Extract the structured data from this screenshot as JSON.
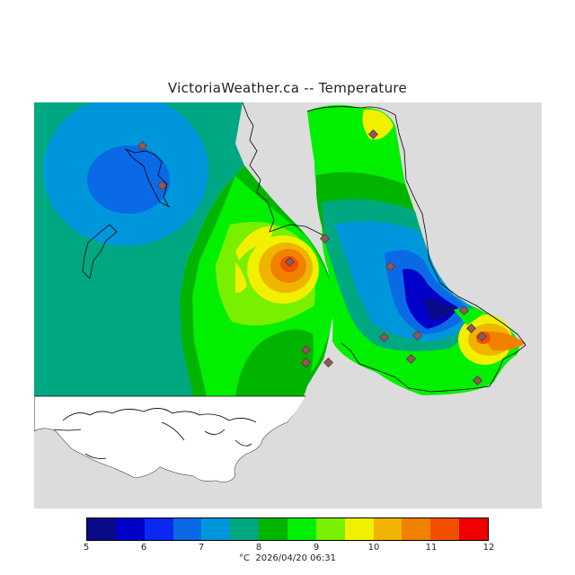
{
  "title": "VictoriaWeather.ca -- Temperature",
  "legend": {
    "values": [
      "5",
      "6",
      "7",
      "8",
      "9",
      "10",
      "11",
      "12"
    ],
    "colors": [
      "#0b0b8a",
      "#0000c8",
      "#0a28f0",
      "#0a6ae6",
      "#0096dc",
      "#00a882",
      "#00b400",
      "#00f000",
      "#78f000",
      "#f0f000",
      "#f0b400",
      "#f08200",
      "#f05000",
      "#f00000"
    ]
  },
  "footer": "°C  2026/04/20 06:31",
  "map_colors": {
    "ocean_land_background": "#dcdcdc",
    "uncovered_land": "#ffffff",
    "coastline": "#000000",
    "station_marker": "#8c5a5a"
  }
}
